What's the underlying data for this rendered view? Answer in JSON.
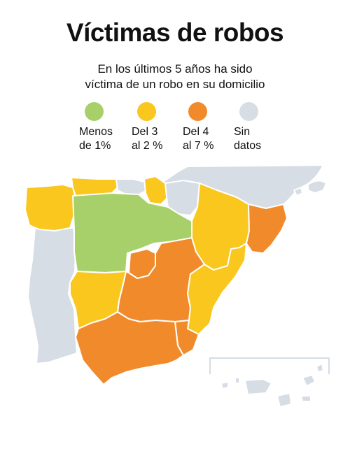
{
  "title": "Víctimas de robos",
  "subtitle": {
    "line1": "En los últimos 5 años ha sido",
    "line2": "víctima de un robo en su domicilio"
  },
  "legend": [
    {
      "line1": "Menos",
      "line2": "de 1%",
      "color": "#a8d06a",
      "category": "low"
    },
    {
      "line1": "Del 3",
      "line2": "al 2 %",
      "color": "#f9c71e",
      "category": "mid"
    },
    {
      "line1": "Del 4",
      "line2": "al 7 %",
      "color": "#f18a2b",
      "category": "high"
    },
    {
      "line1": "Sin",
      "line2": "datos",
      "color": "#d6dde4",
      "category": "nodata"
    }
  ],
  "map": {
    "type": "choropleth",
    "regions": [
      {
        "id": "galicia",
        "category": "mid"
      },
      {
        "id": "asturias",
        "category": "mid"
      },
      {
        "id": "cantabria",
        "category": "nodata"
      },
      {
        "id": "pais-vasco",
        "category": "mid"
      },
      {
        "id": "navarra",
        "category": "nodata"
      },
      {
        "id": "aragon",
        "category": "mid"
      },
      {
        "id": "cataluna",
        "category": "high"
      },
      {
        "id": "castilla-leon",
        "category": "low"
      },
      {
        "id": "madrid",
        "category": "high"
      },
      {
        "id": "castilla-la-mancha",
        "category": "high"
      },
      {
        "id": "valencia",
        "category": "mid"
      },
      {
        "id": "murcia",
        "category": "high"
      },
      {
        "id": "extremadura",
        "category": "mid"
      },
      {
        "id": "andalucia",
        "category": "high"
      },
      {
        "id": "portugal",
        "category": "nodata"
      },
      {
        "id": "francia",
        "category": "nodata"
      },
      {
        "id": "baleares",
        "category": "nodata"
      },
      {
        "id": "canarias",
        "category": "nodata"
      }
    ]
  }
}
